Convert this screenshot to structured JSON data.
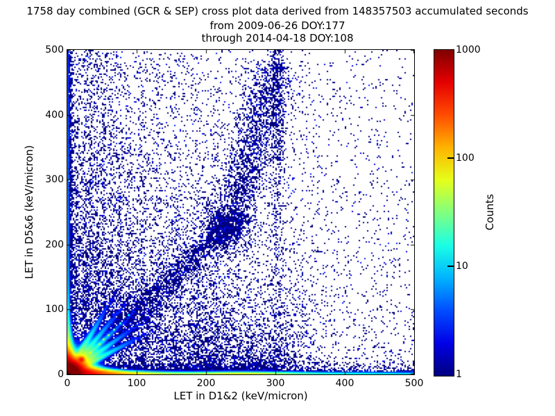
{
  "title": {
    "line1": "1758 day combined (GCR & SEP) cross plot data derived from 148357503 accumulated seconds",
    "line2": "from 2009-06-26 DOY:177",
    "line3": "through 2014-04-18 DOY:108"
  },
  "chart_data": {
    "type": "heatmap",
    "subtype": "2d-histogram-density-cross-plot",
    "title": "1758 day combined (GCR & SEP) cross plot data derived from 148357503 accumulated seconds from 2009-06-26 DOY:177 through 2014-04-18 DOY:108",
    "xlabel": "LET in D1&2 (keV/micron)",
    "ylabel": "LET in D5&6 (keV/micron)",
    "xlim": [
      0,
      500
    ],
    "ylim": [
      0,
      500
    ],
    "xticks": [
      "0",
      "100",
      "200",
      "300",
      "400",
      "500"
    ],
    "yticks": [
      "0",
      "100",
      "200",
      "300",
      "400",
      "500"
    ],
    "grid": false,
    "colorbar": {
      "label": "Counts",
      "scale": "log",
      "range": [
        1,
        1000
      ],
      "tick_labels": [
        "1000",
        "100",
        "10",
        "1"
      ],
      "tick_values": [
        1000,
        100,
        10,
        1
      ],
      "colormap": "jet",
      "color_low": "#000080",
      "color_high": "#800000"
    },
    "density_model": {
      "desc": "Estimated structure of the 2D LET-vs-LET histogram: intense red hotspot at origin, red-to-cyan band hugging the x axis, dense blue column hugging the y axis, nuclear-species streaks fanning from the origin, a broad blue diagonal coincidence band with a dense knot near (230,230) rising to (300,500), vertical enhancement stripes, and a sparse blue background that thins toward the upper right.",
      "seed": 42,
      "field": {
        "core": {
          "amp": 1500,
          "scale": 8
        },
        "bottom_ridge": {
          "amp": 1000,
          "xscale": 35,
          "tail_amp": 55,
          "tail_xscale": 320,
          "bump_amp": 45,
          "bump_x": 255,
          "bump_sigma": 45,
          "h0": 2.2,
          "h1": 13,
          "hxscale": 28
        },
        "left_ridge": {
          "amp": 650,
          "yscale": 20,
          "tail_amp": 14,
          "tail_yscale": 350,
          "h0": 2.2,
          "h1": 9,
          "hyscale": 30
        },
        "streaks": {
          "slopes": [
            0.55,
            0.75,
            1.0,
            1.3,
            1.8
          ],
          "amp": 130,
          "sigma": 2.6,
          "rscale": 30
        },
        "knot": {
          "x": 20.5,
          "y": 23,
          "amp": 280,
          "sigma": 2.6
        }
      },
      "background": {
        "n_exp": 8500,
        "xscale": 160,
        "yscale": 270,
        "n_uniform": 1400
      },
      "under_band": {
        "n": 2200,
        "x0": 60,
        "x1": 380,
        "yscale": 55
      },
      "bottom_fuzz": {
        "n": 2800,
        "xscale": 240,
        "uniform_frac": 0.3,
        "yscale": 9,
        "cloud": {
          "cx": 248,
          "sx": 40,
          "n": 550,
          "yscale": 13
        }
      },
      "left_fuzz": {
        "n": 1400,
        "ypow": 1.25,
        "xsigma": 3.5,
        "wide_n": 450,
        "wide_xscale": 20,
        "wide_yscale": 160
      },
      "tracks": {
        "slopes": [
          0.55,
          0.75,
          1.0,
          1.3,
          1.8
        ],
        "n_each": 190,
        "r0": 50,
        "rscale": 48,
        "rmax": 150,
        "jitter": 2.7
      },
      "band": {
        "seg1": {
          "x0": 52,
          "y0": 52,
          "x1": 236,
          "y1": 236,
          "sigma": 9,
          "n": 1600
        },
        "seg2": {
          "x0": 236,
          "y0": 236,
          "x1": 300,
          "y1": 480,
          "sigma": 15,
          "n": 1500
        },
        "halo": {
          "sigma": 28,
          "n": 900
        },
        "knot": {
          "x": 230,
          "y": 230,
          "sigma": 17,
          "n": 900
        }
      },
      "stripes": [
        {
          "x": 12,
          "n": 220,
          "yscale": 300
        },
        {
          "x": 25,
          "n": 300,
          "yscale": 330
        },
        {
          "x": 33,
          "n": 300,
          "yscale": 380
        },
        {
          "x": 42,
          "n": 280,
          "yscale": 350
        },
        {
          "x": 52,
          "n": 260,
          "yscale": 320
        },
        {
          "x": 62,
          "n": 240,
          "yscale": 300
        },
        {
          "x": 75,
          "n": 200,
          "yscale": 260
        },
        {
          "x": 88,
          "n": 150,
          "yscale": 220
        },
        {
          "x": 107,
          "n": 150,
          "yscale": 260
        },
        {
          "x": 131,
          "n": 140,
          "yscale": 300
        },
        {
          "x": 158,
          "n": 130,
          "yscale": 280
        },
        {
          "x": 186,
          "n": 120,
          "yscale": 260
        },
        {
          "x": 214,
          "n": 110,
          "yscale": 240
        },
        {
          "x": 302,
          "n": 520,
          "yscale": 0,
          "uniform": true,
          "top_extra": 180,
          "sigma": 6
        }
      ],
      "bright_spots": [
        {
          "x": 33,
          "y": 34,
          "c": 60
        },
        {
          "x": 46,
          "y": 47,
          "c": 45
        },
        {
          "x": 52,
          "y": 54,
          "c": 38
        },
        {
          "x": 59,
          "y": 61,
          "c": 34
        },
        {
          "x": 67,
          "y": 69,
          "c": 26
        },
        {
          "x": 76,
          "y": 79,
          "c": 18
        },
        {
          "x": 88,
          "y": 92,
          "c": 12
        }
      ]
    }
  }
}
